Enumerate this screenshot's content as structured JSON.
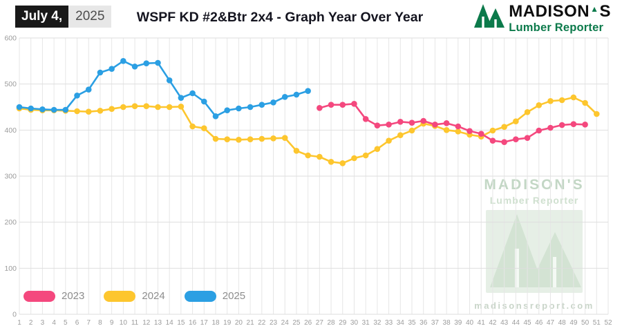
{
  "header": {
    "date_label": "July 4,",
    "date_year": "2025",
    "title": "WSPF KD #2&Btr 2x4 - Graph Year Over Year",
    "logo_name_a": "MADISON",
    "logo_name_b": "S",
    "logo_subtitle": "Lumber Reporter"
  },
  "watermark": {
    "name": "MADISON'S",
    "subtitle": "Lumber Reporter",
    "url": "madisonsreport.com"
  },
  "legend": [
    {
      "label": "2023",
      "color": "#F4487E"
    },
    {
      "label": "2024",
      "color": "#FDC62E"
    },
    {
      "label": "2025",
      "color": "#2B9FE3"
    }
  ],
  "chart_data": {
    "type": "line",
    "title": "WSPF KD #2&Btr 2x4 - Graph Year Over Year",
    "x_label_range": [
      1,
      52
    ],
    "ylim": [
      0,
      600
    ],
    "y_ticks": [
      0,
      100,
      200,
      300,
      400,
      500,
      600
    ],
    "grid": true,
    "legend_position": "bottom-left",
    "series": [
      {
        "name": "2024",
        "color": "#FDC62E",
        "start_week": 1,
        "values": [
          447,
          444,
          443,
          443,
          442,
          441,
          440,
          442,
          446,
          450,
          452,
          452,
          450,
          450,
          451,
          408,
          404,
          381,
          380,
          379,
          380,
          381,
          382,
          383,
          355,
          345,
          342,
          331,
          328,
          339,
          345,
          359,
          377,
          389,
          399,
          414,
          409,
          400,
          397,
          390,
          386,
          399,
          407,
          419,
          439,
          454,
          463,
          465,
          471,
          459,
          435
        ]
      },
      {
        "name": "2023",
        "color": "#F4487E",
        "start_week": 27,
        "values": [
          448,
          455,
          455,
          457,
          424,
          410,
          412,
          418,
          416,
          420,
          412,
          415,
          408,
          398,
          392,
          377,
          374,
          380,
          383,
          399,
          405,
          411,
          413,
          412
        ]
      },
      {
        "name": "2025",
        "color": "#2B9FE3",
        "start_week": 1,
        "values": [
          450,
          447,
          445,
          444,
          444,
          475,
          488,
          525,
          533,
          550,
          538,
          545,
          546,
          508,
          470,
          480,
          462,
          430,
          443,
          447,
          450,
          455,
          460,
          472,
          477,
          485
        ]
      }
    ]
  }
}
